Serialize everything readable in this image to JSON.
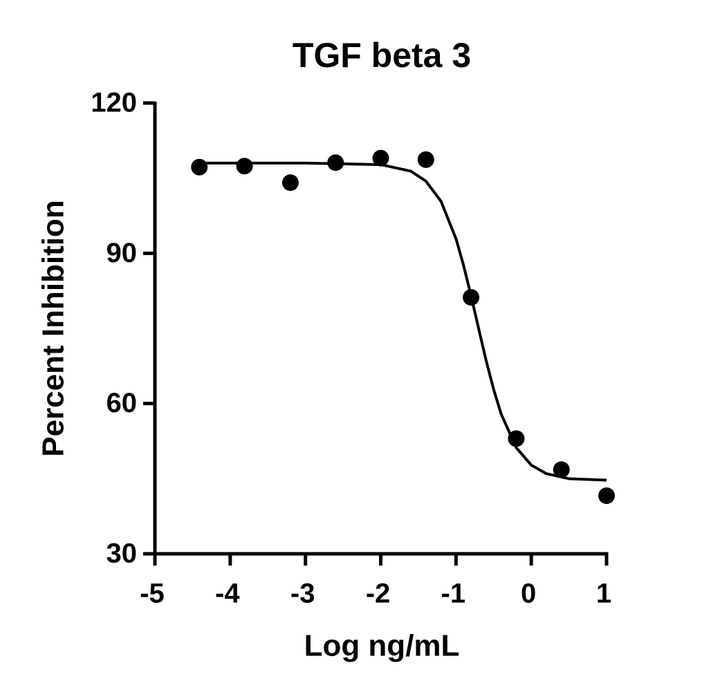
{
  "chart_data": {
    "type": "scatter",
    "title": "TGF beta 3",
    "x_label": "Log ng/mL",
    "y_label": "Percent Inhibition",
    "xlim": [
      -5,
      1
    ],
    "xticks": [
      -5,
      -4,
      -3,
      -2,
      -1,
      0,
      1
    ],
    "ylim": [
      30,
      120
    ],
    "yticks": [
      30,
      60,
      90,
      120
    ],
    "color": "#000000",
    "series": [
      {
        "type": "scatter",
        "color": "#000000",
        "x": [
          -4.41,
          -3.81,
          -3.2,
          -2.6,
          -2.0,
          -1.4,
          -0.8,
          -0.2,
          0.4,
          1.0
        ],
        "values": [
          107.2,
          107.4,
          104.1,
          108.1,
          109.0,
          108.7,
          81.2,
          53.0,
          46.8,
          41.6
        ]
      },
      {
        "type": "line",
        "color": "#000000",
        "x": [
          -4.4,
          -3,
          -2,
          -1.6,
          -1.4,
          -1.2,
          -1.0,
          -0.9,
          -0.8,
          -0.7,
          -0.6,
          -0.5,
          -0.4,
          -0.2,
          0,
          0.2,
          0.5,
          1.0
        ],
        "values": [
          108.0,
          108.0,
          107.7,
          106.4,
          104.4,
          100.4,
          92.9,
          87.6,
          81.5,
          75.0,
          68.6,
          62.8,
          57.9,
          51.2,
          47.7,
          46.0,
          45.0,
          44.7
        ]
      }
    ]
  }
}
